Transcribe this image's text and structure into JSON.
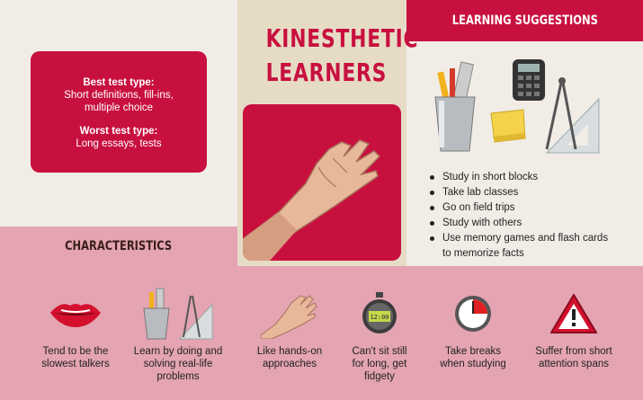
{
  "title": "KINESTHETIC LEARNERS",
  "test_box": {
    "best_label": "Best test type:",
    "best_value": "Short definitions, fill-ins, multiple choice",
    "worst_label": "Worst test type:",
    "worst_value": "Long essays, tests"
  },
  "suggestions": {
    "heading": "LEARNING SUGGESTIONS",
    "items": [
      "Study in short blocks",
      "Take lab classes",
      "Go on field trips",
      "Study with others",
      "Use memory games and flash cards to memorize facts"
    ]
  },
  "characteristics": {
    "heading": "CHARACTERISTICS",
    "items": [
      {
        "icon": "lips-icon",
        "text": "Tend to be the slowest talkers"
      },
      {
        "icon": "tools-cup-icon",
        "text": "Learn by doing and solving real-life problems"
      },
      {
        "icon": "hand-icon",
        "text": "Like hands-on approaches"
      },
      {
        "icon": "stopwatch-icon",
        "text": "Can't sit still for long, get fidgety"
      },
      {
        "icon": "clock-icon",
        "text": "Take breaks when studying"
      },
      {
        "icon": "warning-icon",
        "text": "Suffer from short attention spans"
      }
    ],
    "stopwatch_display": "12:00"
  },
  "colors": {
    "accent": "#c8103f",
    "pink": "#e4a4b1",
    "cream": "#f1ede6",
    "tan": "#e6dcc6"
  }
}
